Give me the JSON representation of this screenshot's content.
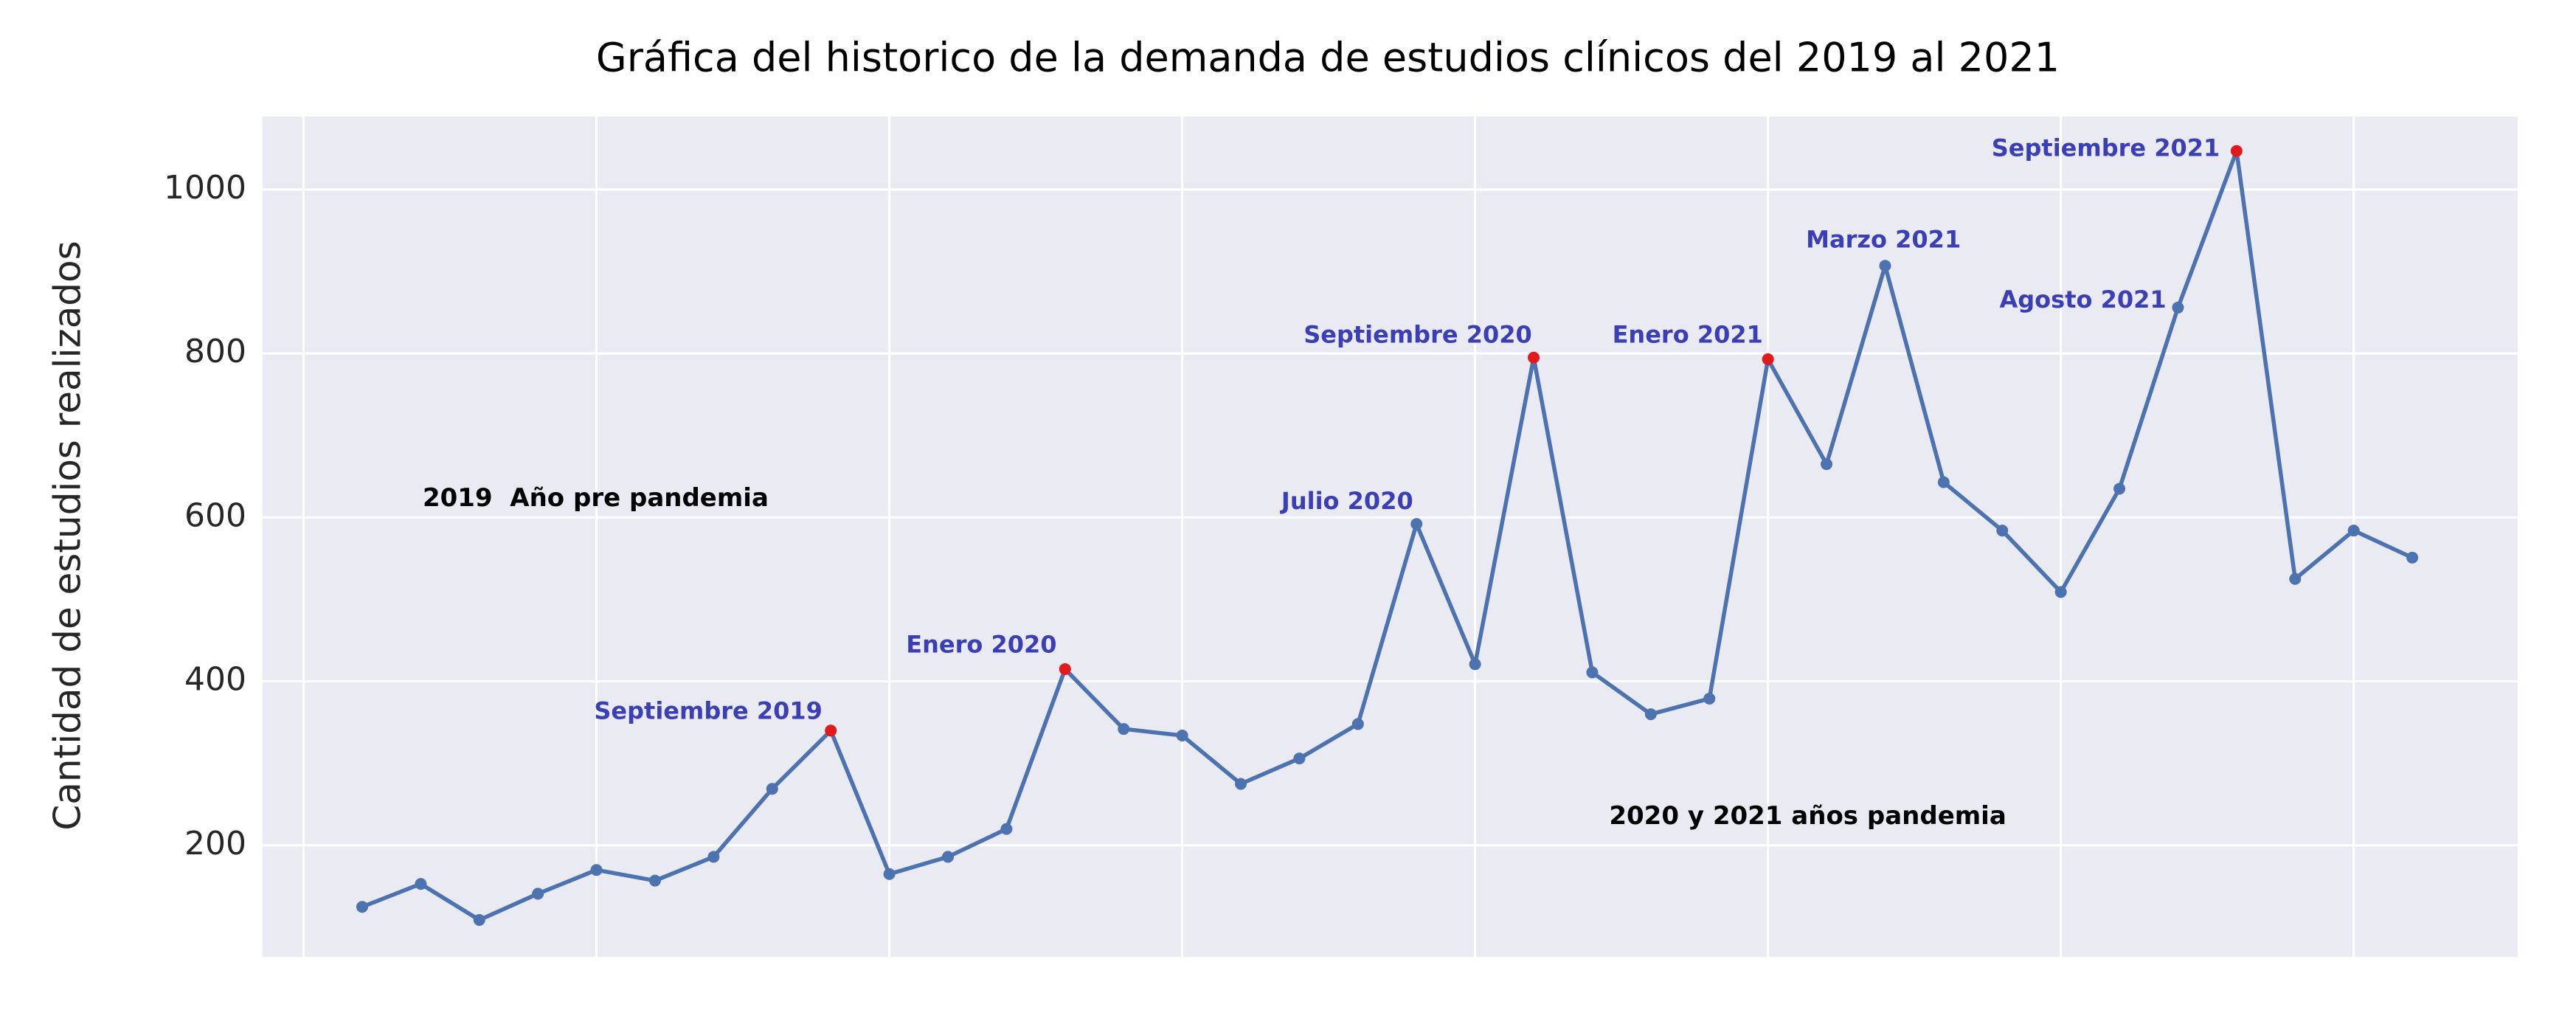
{
  "chart_data": {
    "type": "line",
    "title": "Gráfica del historico de la demanda de estudios clínicos del 2019 al 2021",
    "y_label": "Cantidad de estudios realizados",
    "x": [
      0,
      1,
      2,
      3,
      4,
      5,
      6,
      7,
      8,
      9,
      10,
      11,
      12,
      13,
      14,
      15,
      16,
      17,
      18,
      19,
      20,
      21,
      22,
      23,
      24,
      25,
      26,
      27,
      28,
      29,
      30,
      31,
      32,
      33,
      34,
      35
    ],
    "series": [
      {
        "color": "#4c72b0",
        "values": [
          125,
          153,
          109,
          141,
          170,
          157,
          186,
          269,
          340,
          165,
          186,
          220,
          415,
          342,
          334,
          275,
          306,
          348,
          592,
          421,
          795,
          411,
          360,
          379,
          793,
          665,
          907,
          643,
          584,
          509,
          635,
          856,
          1047,
          525,
          584,
          551
        ],
        "marker_colors": [
          "#4c72b0",
          "#4c72b0",
          "#4c72b0",
          "#4c72b0",
          "#4c72b0",
          "#4c72b0",
          "#4c72b0",
          "#4c72b0",
          "#e31a1c",
          "#4c72b0",
          "#4c72b0",
          "#4c72b0",
          "#e31a1c",
          "#4c72b0",
          "#4c72b0",
          "#4c72b0",
          "#4c72b0",
          "#4c72b0",
          "#4c72b0",
          "#4c72b0",
          "#e31a1c",
          "#4c72b0",
          "#4c72b0",
          "#4c72b0",
          "#e31a1c",
          "#4c72b0",
          "#4c72b0",
          "#4c72b0",
          "#4c72b0",
          "#4c72b0",
          "#4c72b0",
          "#4c72b0",
          "#e31a1c",
          "#4c72b0",
          "#4c72b0",
          "#4c72b0"
        ]
      }
    ],
    "annotations": [
      {
        "text": "Septiembre 2019",
        "x": 8
      },
      {
        "text": "Enero 2020",
        "x": 12
      },
      {
        "text": "Julio 2020",
        "x": 18
      },
      {
        "text": "Septiembre 2020",
        "x": 20
      },
      {
        "text": "Enero 2021",
        "x": 24
      },
      {
        "text": "Marzo 2021",
        "x": 26
      },
      {
        "text": "Agosto 2021",
        "x": 31
      },
      {
        "text": "Septiembre 2021",
        "x": 32
      }
    ],
    "annotation_color": "#3a3fb5",
    "region_labels": [
      "2019  Año pre pandemia",
      "2020 y 2021 años pandemia"
    ],
    "xlim": [
      -1.7,
      36.8
    ],
    "xticks": [
      -1,
      4,
      9,
      14,
      19,
      24,
      29,
      34
    ],
    "ylim": [
      64,
      1089
    ],
    "yticks": [
      200,
      400,
      600,
      800,
      1000
    ],
    "grid": true
  }
}
